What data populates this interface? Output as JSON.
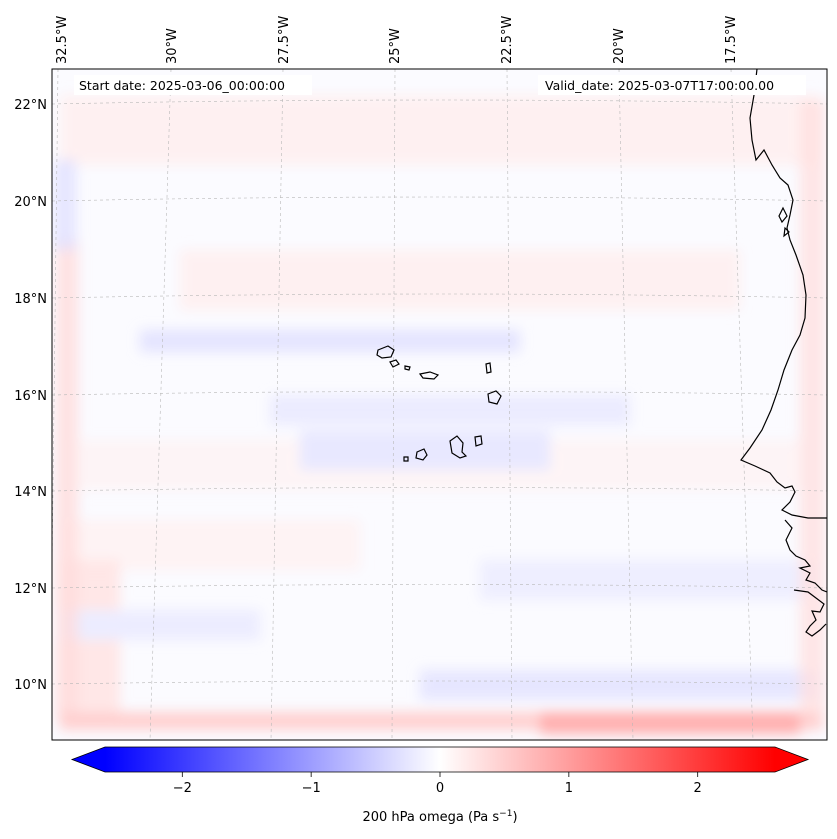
{
  "header": {
    "start_date": "Start date: 2025-03-06_00:00:00",
    "valid_date": "Valid_date: 2025-03-07T17:00:00.00"
  },
  "map": {
    "lon_labels": [
      "32.5°W",
      "30°W",
      "27.5°W",
      "25°W",
      "22.5°W",
      "20°W",
      "17.5°W"
    ],
    "lat_labels": [
      "22°N",
      "20°N",
      "18°N",
      "16°N",
      "14°N",
      "12°N",
      "10°N"
    ],
    "lon_range": [
      -32.5,
      -15.5
    ],
    "lat_range": [
      8.9,
      22.8
    ],
    "variable": "200 hPa omega",
    "field_range_pa_s": [
      -0.3,
      0.5
    ]
  },
  "colorbar": {
    "label_prefix": "200 hPa omega (Pa s",
    "label_sup": "−1",
    "label_suffix": ")",
    "tick_labels": [
      "−2",
      "−1",
      "0",
      "1",
      "2"
    ],
    "ticks": [
      -2,
      -1,
      0,
      1,
      2
    ],
    "range": [
      -2.6,
      2.6
    ],
    "low_color": "#0000ff",
    "mid_color": "#ffffff",
    "high_color": "#ff0000"
  }
}
